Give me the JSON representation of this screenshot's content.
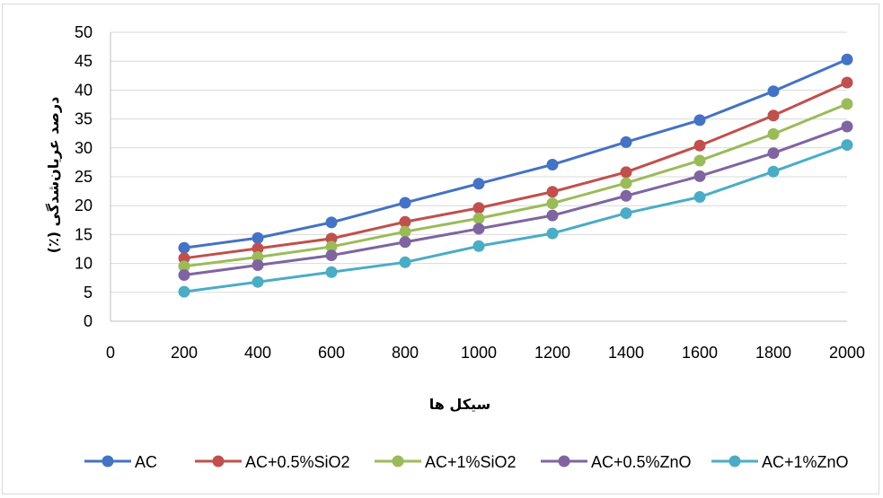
{
  "chart_data": {
    "type": "line",
    "title": "",
    "xlabel": "سیکل ها",
    "ylabel": "درصد عریان‌شدگی (٪)",
    "xlim": [
      0,
      2000
    ],
    "ylim": [
      0,
      50
    ],
    "x_ticks": [
      0,
      200,
      400,
      600,
      800,
      1000,
      1200,
      1400,
      1600,
      1800,
      2000
    ],
    "y_ticks": [
      0,
      5,
      10,
      15,
      20,
      25,
      30,
      35,
      40,
      45,
      50
    ],
    "grid": "horizontal",
    "legend_position": "bottom",
    "x": [
      200,
      400,
      600,
      800,
      1000,
      1200,
      1400,
      1600,
      1800,
      2000
    ],
    "series": [
      {
        "name": "AC",
        "color": "#4472c4",
        "values": [
          12.7,
          14.4,
          17.1,
          20.5,
          23.8,
          27.1,
          31.0,
          34.8,
          39.8,
          45.3
        ]
      },
      {
        "name": "AC+0.5%SiO2",
        "color": "#c0504d",
        "values": [
          10.9,
          12.6,
          14.3,
          17.2,
          19.6,
          22.4,
          25.8,
          30.4,
          35.6,
          41.3
        ]
      },
      {
        "name": "AC+1%SiO2",
        "color": "#9bbb59",
        "values": [
          9.5,
          11.1,
          12.9,
          15.5,
          17.8,
          20.4,
          23.9,
          27.8,
          32.4,
          37.6
        ]
      },
      {
        "name": "AC+0.5%ZnO",
        "color": "#8064a2",
        "values": [
          8.0,
          9.7,
          11.4,
          13.7,
          16.0,
          18.3,
          21.7,
          25.1,
          29.1,
          33.7
        ]
      },
      {
        "name": "AC+1%ZnO",
        "color": "#4bacc6",
        "values": [
          5.1,
          6.8,
          8.5,
          10.2,
          13.0,
          15.2,
          18.7,
          21.5,
          25.9,
          30.5
        ]
      }
    ]
  }
}
